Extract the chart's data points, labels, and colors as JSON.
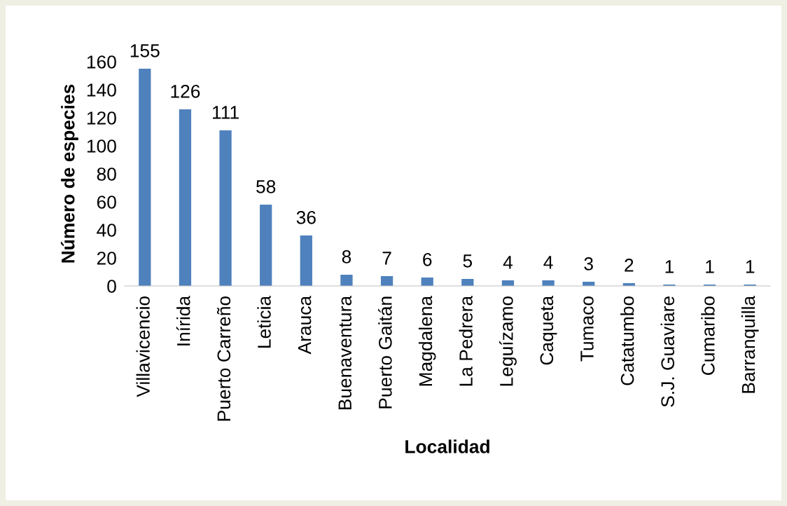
{
  "chart_data": {
    "type": "bar",
    "xlabel": "Localidad",
    "ylabel": "Número de especies",
    "categories": [
      "Villavicencio",
      "Inírida",
      "Puerto Carreño",
      "Leticia",
      "Arauca",
      "Buenaventura",
      "Puerto Gaitán",
      "Magdalena",
      "La Pedrera",
      "Leguízamo",
      "Caqueta",
      "Tumaco",
      "Catatumbo",
      "S.J. Guaviare",
      "Cumaribo",
      "Barranquilla"
    ],
    "values": [
      155,
      126,
      111,
      58,
      36,
      8,
      7,
      6,
      5,
      4,
      4,
      3,
      2,
      1,
      1,
      1
    ],
    "color": "#4f81bd",
    "ylim": [
      0,
      160
    ],
    "yticks": [
      0,
      20,
      40,
      60,
      80,
      100,
      120,
      140,
      160
    ],
    "data_labels": true,
    "grid": false,
    "legend": false
  }
}
